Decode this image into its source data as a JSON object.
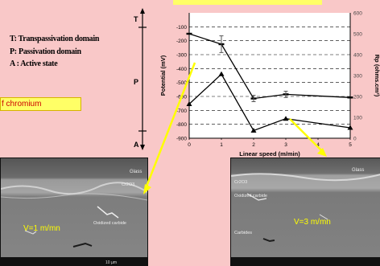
{
  "legend": {
    "t_line": "T: Transpassivation domain",
    "p_line": "P: Passivation domain",
    "a_line": "A : Active state"
  },
  "banner_text": "f chromium",
  "domain_markers": {
    "t": "T",
    "p": "P",
    "a": "A"
  },
  "micrographs": [
    {
      "speed_label": "V=1 m/mn",
      "layer_labels": [
        "Glass",
        "Cr2O3",
        "Oxidized carbide"
      ],
      "scale_label": "10 µm"
    },
    {
      "speed_label": "V=3 m/mn",
      "layer_labels": [
        "Glass",
        "Cr2O3",
        "Oxidized carbide",
        "Carbides"
      ],
      "scale_label": ""
    }
  ],
  "colors": {
    "background": "#f9c8c8",
    "banner": "#ffff66",
    "arrow": "#ffff00",
    "speed_text": "#ffff00"
  },
  "chart_data": {
    "type": "line",
    "xlabel": "Linear speed (m/min)",
    "ylabel_left": "Potential (mV)",
    "ylabel_right": "Rp (ohms.cm²)",
    "x_ticks": [
      "0",
      "1",
      "2",
      "3",
      "4",
      "5"
    ],
    "y_ticks_left": [
      "-100",
      "-200",
      "-300",
      "-400",
      "-500",
      "-600",
      "-700",
      "-800",
      "-900"
    ],
    "y_ticks_right": [
      "0",
      "100",
      "200",
      "300",
      "400",
      "500",
      "600"
    ],
    "xlim": [
      0,
      5
    ],
    "ylim_left": [
      -900,
      0
    ],
    "ylim_right": [
      0,
      600
    ],
    "grid": true,
    "series": [
      {
        "axis": "left",
        "marker": "triangle",
        "x": [
          0,
          1,
          2,
          3,
          5
        ],
        "y": [
          -655,
          -440,
          -845,
          -760,
          -825
        ]
      },
      {
        "axis": "right",
        "marker": "dash",
        "x": [
          0,
          1,
          2,
          3,
          5
        ],
        "y": [
          500,
          450,
          190,
          210,
          195
        ],
        "error": [
          0,
          40,
          15,
          15,
          0
        ]
      }
    ]
  }
}
